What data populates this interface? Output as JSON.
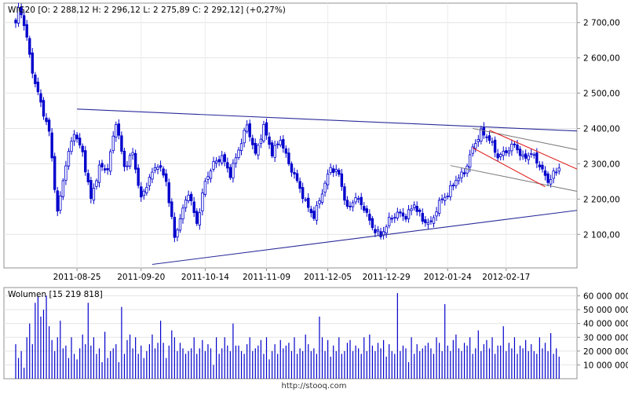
{
  "source": "http://stooq.com",
  "chart_data": [
    {
      "type": "candlestick",
      "title": "WIG20 [O: 2 288,12  H: 2 296,12  L: 2 275,89  C: 2 292,12] (+0,27%)",
      "date_labels": [
        "2011-08-25",
        "2011-09-20",
        "2011-10-14",
        "2011-11-09",
        "2011-12-05",
        "2011-12-29",
        "2012-01-24",
        "2012-02-17"
      ],
      "y_ticks": [
        2100,
        2200,
        2300,
        2400,
        2500,
        2600,
        2700
      ],
      "y_tick_labels": [
        "2 100,00",
        "2 200,00",
        "2 300,00",
        "2 400,00",
        "2 500,00",
        "2 600,00",
        "2 700,00"
      ],
      "ylim": [
        2005,
        2755
      ],
      "grid": true,
      "colors": {
        "up": "#ffffff",
        "down": "#0000cc",
        "wick": "#0000cc",
        "trend": "#2b2b9a",
        "channel_red": "#e01010",
        "channel_grey": "#777777"
      },
      "anchors": [
        [
          0,
          2695
        ],
        [
          1,
          2740
        ],
        [
          3,
          2700
        ],
        [
          6,
          2560
        ],
        [
          9,
          2470
        ],
        [
          12,
          2390
        ],
        [
          15,
          2160
        ],
        [
          18,
          2300
        ],
        [
          21,
          2390
        ],
        [
          24,
          2330
        ],
        [
          27,
          2200
        ],
        [
          30,
          2290
        ],
        [
          33,
          2285
        ],
        [
          36,
          2420
        ],
        [
          39,
          2290
        ],
        [
          42,
          2330
        ],
        [
          45,
          2200
        ],
        [
          48,
          2260
        ],
        [
          51,
          2300
        ],
        [
          54,
          2250
        ],
        [
          57,
          2090
        ],
        [
          59,
          2145
        ],
        [
          62,
          2220
        ],
        [
          65,
          2130
        ],
        [
          68,
          2250
        ],
        [
          71,
          2300
        ],
        [
          74,
          2320
        ],
        [
          77,
          2270
        ],
        [
          80,
          2340
        ],
        [
          83,
          2410
        ],
        [
          86,
          2325
        ],
        [
          89,
          2405
        ],
        [
          92,
          2330
        ],
        [
          95,
          2370
        ],
        [
          98,
          2300
        ],
        [
          101,
          2250
        ],
        [
          104,
          2190
        ],
        [
          107,
          2150
        ],
        [
          110,
          2220
        ],
        [
          113,
          2290
        ],
        [
          116,
          2270
        ],
        [
          119,
          2170
        ],
        [
          122,
          2205
        ],
        [
          125,
          2175
        ],
        [
          128,
          2120
        ],
        [
          131,
          2095
        ],
        [
          134,
          2140
        ],
        [
          137,
          2160
        ],
        [
          140,
          2150
        ],
        [
          143,
          2185
        ],
        [
          146,
          2140
        ],
        [
          149,
          2130
        ],
        [
          152,
          2190
        ],
        [
          155,
          2215
        ],
        [
          158,
          2255
        ],
        [
          161,
          2275
        ],
        [
          164,
          2345
        ],
        [
          167,
          2390
        ],
        [
          170,
          2370
        ],
        [
          173,
          2320
        ],
        [
          176,
          2335
        ],
        [
          179,
          2355
        ],
        [
          182,
          2315
        ],
        [
          185,
          2330
        ],
        [
          188,
          2295
        ],
        [
          191,
          2250
        ],
        [
          193,
          2270
        ],
        [
          195,
          2290
        ]
      ],
      "trendlines": [
        {
          "name": "upper-resistance",
          "x1": "2011-08-25",
          "y1": 2455,
          "x2": "end",
          "y2": 2393
        },
        {
          "name": "lower-support",
          "x1": "2011-09-20",
          "y1": 2015,
          "x2": "end",
          "y2": 2168
        }
      ]
    },
    {
      "type": "bar",
      "title": "Wolumen [15 219 818]",
      "y_ticks": [
        10000000,
        20000000,
        30000000,
        40000000,
        50000000,
        60000000
      ],
      "y_tick_labels": [
        "10 000 000",
        "20 000 000",
        "30 000 000",
        "40 000 000",
        "50 000 000",
        "60 000 000"
      ],
      "ylim": [
        0,
        66000000
      ],
      "color": "#0000cc",
      "values": [
        25,
        15,
        20,
        8,
        30,
        40,
        25,
        55,
        60,
        45,
        50,
        60,
        38,
        28,
        20,
        30,
        42,
        22,
        24,
        15,
        30,
        18,
        14,
        22,
        32,
        25,
        55,
        24,
        30,
        18,
        22,
        12,
        34,
        15,
        20,
        22,
        25,
        12,
        52,
        18,
        28,
        32,
        22,
        30,
        18,
        24,
        15,
        20,
        25,
        32,
        22,
        26,
        42,
        26,
        15,
        24,
        35,
        30,
        20,
        26,
        22,
        18,
        20,
        22,
        30,
        18,
        22,
        28,
        20,
        25,
        22,
        10,
        30,
        18,
        22,
        30,
        24,
        20,
        40,
        24,
        24,
        20,
        18,
        25,
        30,
        20,
        22,
        24,
        28,
        18,
        30,
        14,
        20,
        25,
        18,
        28,
        22,
        24,
        26,
        20,
        30,
        18,
        22,
        20,
        32,
        25,
        20,
        22,
        18,
        45,
        30,
        20,
        28,
        16,
        24,
        20,
        30,
        18,
        20,
        26,
        28,
        20,
        24,
        22,
        18,
        30,
        20,
        32,
        24,
        20,
        26,
        22,
        28,
        16,
        25,
        20,
        18,
        62,
        20,
        24,
        22,
        12,
        30,
        18,
        25,
        20,
        22,
        24,
        26,
        22,
        18,
        30,
        26,
        20,
        54,
        24,
        20,
        28,
        32,
        22,
        20,
        26,
        24,
        30,
        18,
        22,
        35,
        20,
        25,
        28,
        22,
        30,
        18,
        24,
        24,
        38,
        20,
        26,
        22,
        30,
        18,
        24,
        22,
        28,
        20,
        25,
        20,
        18,
        30,
        22,
        26,
        20,
        33,
        18,
        22,
        16
      ]
    }
  ]
}
